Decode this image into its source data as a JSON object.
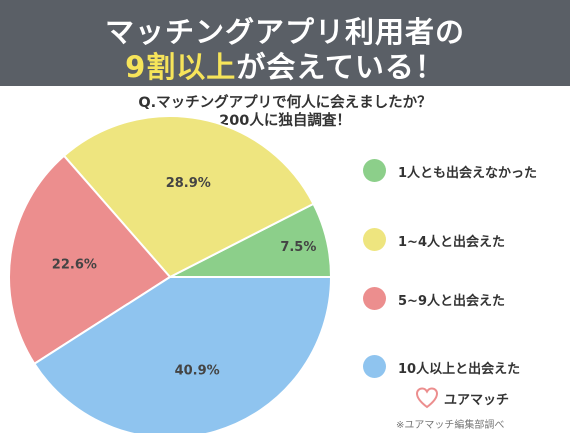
{
  "banner": {
    "line1": "マッチングアプリ利用者の",
    "line2_highlight": "9割以上",
    "line2_rest": "が会えている！"
  },
  "question": {
    "line1": "Q.マッチングアプリで何人に会えましたか？",
    "line2": "200人に独自調査！"
  },
  "chart_data": {
    "type": "pie",
    "slices": [
      {
        "label": "1人とも出会えなかった",
        "value": 7.5,
        "display": "7.5%",
        "color": "#8ccf8a"
      },
      {
        "label": "1~4人と出会えた",
        "value": 28.9,
        "display": "28.9%",
        "color": "#eee57f"
      },
      {
        "label": "5~9人と出会えた",
        "value": 22.6,
        "display": "22.6%",
        "color": "#ec8e8e"
      },
      {
        "label": "10人以上と出会えた",
        "value": 40.9,
        "display": "40.9%",
        "color": "#8fc4ef"
      }
    ],
    "start_angle_deg": 0,
    "direction": "counterclockwise",
    "legend_position": "right"
  },
  "logo": {
    "name": "ユアマッチ",
    "icon": "heart-logo-icon"
  },
  "credit": "※ユアマッチ編集部調べ"
}
